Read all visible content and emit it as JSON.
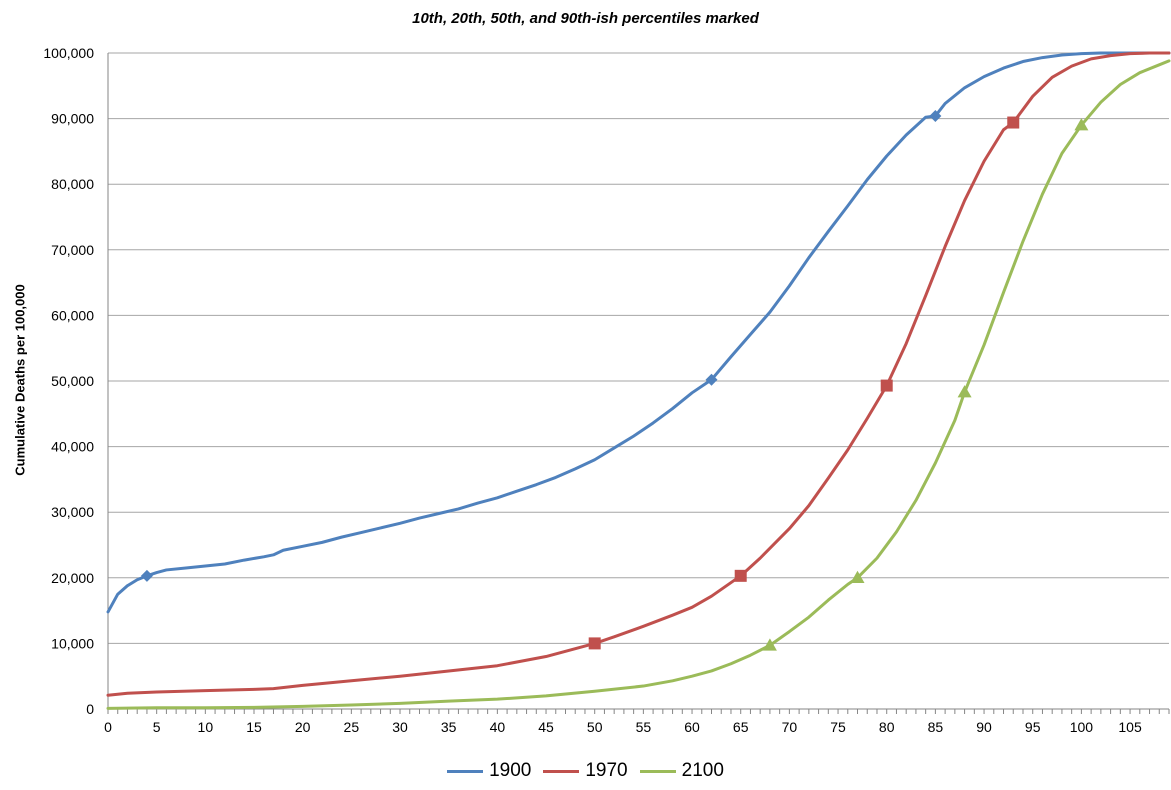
{
  "chart_data": {
    "type": "line",
    "title": "10th, 20th, 50th, and 90th-ish percentiles marked",
    "xlabel": "",
    "ylabel": "Cumulative Deaths per 100,000",
    "xlim": [
      0,
      109
    ],
    "ylim": [
      0,
      100000
    ],
    "x_ticks": [
      0,
      5,
      10,
      15,
      20,
      25,
      30,
      35,
      40,
      45,
      50,
      55,
      60,
      65,
      70,
      75,
      80,
      85,
      90,
      95,
      100,
      105
    ],
    "y_ticks": [
      0,
      10000,
      20000,
      30000,
      40000,
      50000,
      60000,
      70000,
      80000,
      90000,
      100000
    ],
    "y_tick_labels": [
      "0",
      "10,000",
      "20,000",
      "30,000",
      "40,000",
      "50,000",
      "60,000",
      "70,000",
      "80,000",
      "90,000",
      "100,000"
    ],
    "grid": "horizontal",
    "legend_position": "bottom",
    "series": [
      {
        "name": "1900",
        "color": "#4F81BD",
        "marker_shape": "diamond",
        "points": [
          [
            0,
            14800
          ],
          [
            1,
            17500
          ],
          [
            2,
            18800
          ],
          [
            3,
            19700
          ],
          [
            4,
            20300
          ],
          [
            5,
            20800
          ],
          [
            6,
            21200
          ],
          [
            8,
            21500
          ],
          [
            10,
            21800
          ],
          [
            12,
            22100
          ],
          [
            14,
            22700
          ],
          [
            16,
            23200
          ],
          [
            17,
            23500
          ],
          [
            18,
            24200
          ],
          [
            20,
            24800
          ],
          [
            22,
            25400
          ],
          [
            24,
            26200
          ],
          [
            26,
            26900
          ],
          [
            28,
            27600
          ],
          [
            30,
            28300
          ],
          [
            32,
            29100
          ],
          [
            34,
            29800
          ],
          [
            36,
            30500
          ],
          [
            38,
            31400
          ],
          [
            40,
            32200
          ],
          [
            42,
            33200
          ],
          [
            44,
            34200
          ],
          [
            46,
            35300
          ],
          [
            48,
            36600
          ],
          [
            50,
            38000
          ],
          [
            52,
            39800
          ],
          [
            54,
            41600
          ],
          [
            56,
            43600
          ],
          [
            58,
            45800
          ],
          [
            60,
            48200
          ],
          [
            62,
            50200
          ],
          [
            64,
            53700
          ],
          [
            66,
            57100
          ],
          [
            68,
            60500
          ],
          [
            70,
            64500
          ],
          [
            72,
            68800
          ],
          [
            74,
            72800
          ],
          [
            76,
            76700
          ],
          [
            78,
            80700
          ],
          [
            80,
            84300
          ],
          [
            82,
            87500
          ],
          [
            84,
            90200
          ],
          [
            85,
            90400
          ],
          [
            86,
            92300
          ],
          [
            88,
            94700
          ],
          [
            90,
            96400
          ],
          [
            92,
            97700
          ],
          [
            94,
            98700
          ],
          [
            96,
            99300
          ],
          [
            98,
            99700
          ],
          [
            100,
            99900
          ],
          [
            102,
            100000
          ],
          [
            105,
            100000
          ],
          [
            109,
            100000
          ]
        ],
        "markers": [
          [
            4,
            20300
          ],
          [
            62,
            50200
          ],
          [
            85,
            90400
          ]
        ]
      },
      {
        "name": "1970",
        "color": "#C0504D",
        "marker_shape": "square",
        "points": [
          [
            0,
            2100
          ],
          [
            2,
            2400
          ],
          [
            5,
            2600
          ],
          [
            10,
            2800
          ],
          [
            15,
            3000
          ],
          [
            17,
            3100
          ],
          [
            20,
            3600
          ],
          [
            25,
            4300
          ],
          [
            30,
            5000
          ],
          [
            35,
            5800
          ],
          [
            40,
            6600
          ],
          [
            45,
            8000
          ],
          [
            50,
            10000
          ],
          [
            52,
            11000
          ],
          [
            55,
            12600
          ],
          [
            58,
            14300
          ],
          [
            60,
            15500
          ],
          [
            62,
            17200
          ],
          [
            65,
            20300
          ],
          [
            67,
            23000
          ],
          [
            70,
            27500
          ],
          [
            72,
            31000
          ],
          [
            74,
            35200
          ],
          [
            76,
            39500
          ],
          [
            78,
            44300
          ],
          [
            80,
            49300
          ],
          [
            82,
            55700
          ],
          [
            84,
            63000
          ],
          [
            86,
            70500
          ],
          [
            88,
            77500
          ],
          [
            90,
            83500
          ],
          [
            92,
            88300
          ],
          [
            93,
            89400
          ],
          [
            95,
            93400
          ],
          [
            97,
            96300
          ],
          [
            99,
            98000
          ],
          [
            101,
            99100
          ],
          [
            103,
            99600
          ],
          [
            105,
            99900
          ],
          [
            107,
            100000
          ],
          [
            109,
            100000
          ]
        ],
        "markers": [
          [
            50,
            10000
          ],
          [
            65,
            20300
          ],
          [
            80,
            49300
          ],
          [
            93,
            89400
          ]
        ]
      },
      {
        "name": "2100",
        "color": "#9BBB59",
        "marker_shape": "triangle",
        "points": [
          [
            0,
            100
          ],
          [
            5,
            200
          ],
          [
            10,
            200
          ],
          [
            15,
            250
          ],
          [
            20,
            400
          ],
          [
            25,
            600
          ],
          [
            30,
            850
          ],
          [
            35,
            1200
          ],
          [
            40,
            1500
          ],
          [
            45,
            2000
          ],
          [
            50,
            2700
          ],
          [
            55,
            3500
          ],
          [
            58,
            4300
          ],
          [
            60,
            5000
          ],
          [
            62,
            5800
          ],
          [
            64,
            6900
          ],
          [
            66,
            8200
          ],
          [
            68,
            9700
          ],
          [
            70,
            11800
          ],
          [
            72,
            14000
          ],
          [
            74,
            16600
          ],
          [
            76,
            19000
          ],
          [
            77,
            20000
          ],
          [
            79,
            23000
          ],
          [
            81,
            27000
          ],
          [
            83,
            31800
          ],
          [
            85,
            37500
          ],
          [
            87,
            44000
          ],
          [
            88,
            48300
          ],
          [
            90,
            55500
          ],
          [
            92,
            63500
          ],
          [
            94,
            71300
          ],
          [
            96,
            78500
          ],
          [
            98,
            84700
          ],
          [
            100,
            89000
          ],
          [
            102,
            92500
          ],
          [
            104,
            95200
          ],
          [
            106,
            97000
          ],
          [
            108,
            98200
          ],
          [
            109,
            98800
          ]
        ],
        "markers": [
          [
            68,
            9700
          ],
          [
            77,
            20000
          ],
          [
            88,
            48300
          ],
          [
            100,
            89000
          ]
        ]
      }
    ]
  }
}
